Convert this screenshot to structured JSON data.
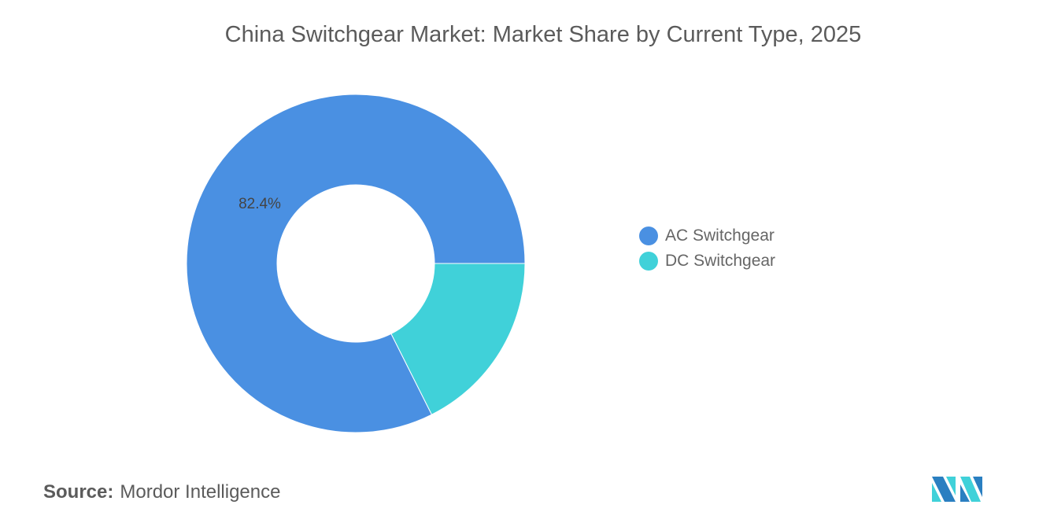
{
  "chart_data": {
    "type": "pie",
    "style": "donut",
    "title": "China Switchgear Market: Market Share by Current Type, 2025",
    "slices": [
      {
        "label": "AC Switchgear",
        "value": 82.4,
        "color": "#4a90e2",
        "data_label": "82.4%"
      },
      {
        "label": "DC Switchgear",
        "value": 17.6,
        "color": "#40d1d9",
        "data_label": ""
      }
    ],
    "legend_position": "right"
  },
  "source": {
    "label": "Source:",
    "value": "Mordor Intelligence"
  },
  "logo_colors": [
    "#2a7fc1",
    "#40d1d9"
  ]
}
